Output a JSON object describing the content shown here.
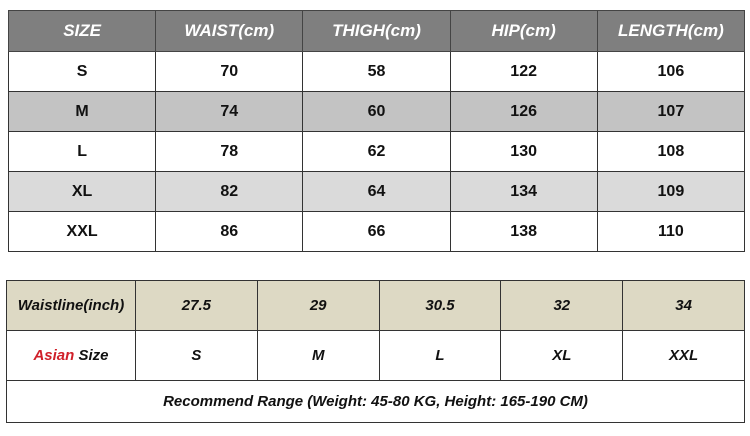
{
  "size_table": {
    "headers": [
      "SIZE",
      "WAIST(cm)",
      "THIGH(cm)",
      "HIP(cm)",
      "LENGTH(cm)"
    ],
    "rows": [
      [
        "S",
        "70",
        "58",
        "122",
        "106"
      ],
      [
        "M",
        "74",
        "60",
        "126",
        "107"
      ],
      [
        "L",
        "78",
        "62",
        "130",
        "108"
      ],
      [
        "XL",
        "82",
        "64",
        "134",
        "109"
      ],
      [
        "XXL",
        "86",
        "66",
        "138",
        "110"
      ]
    ]
  },
  "conversion_table": {
    "waistline_label": "Waistline(inch)",
    "waistline_values": [
      "27.5",
      "29",
      "30.5",
      "32",
      "34"
    ],
    "asian_label_red": "Asian",
    "asian_label_rest": "Size",
    "asian_sizes": [
      "S",
      "M",
      "L",
      "XL",
      "XXL"
    ],
    "recommend": "Recommend Range (Weight: 45-80 KG, Height: 165-190 CM)"
  },
  "colors": {
    "header_bg": "#7f7f7f",
    "stripe_dark": "#c3c3c3",
    "stripe_light": "#dadada",
    "beige": "#ddd9c4",
    "accent_red": "#d0202a"
  }
}
